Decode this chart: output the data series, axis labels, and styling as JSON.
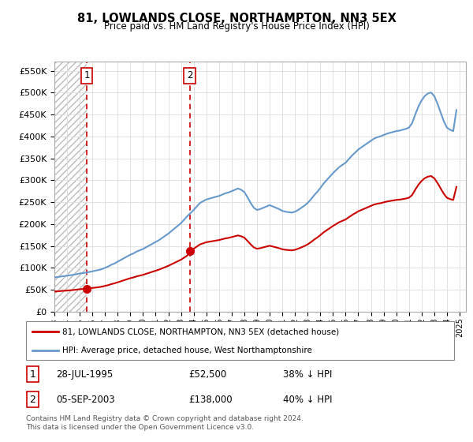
{
  "title": "81, LOWLANDS CLOSE, NORTHAMPTON, NN3 5EX",
  "subtitle": "Price paid vs. HM Land Registry's House Price Index (HPI)",
  "legend_line1": "81, LOWLANDS CLOSE, NORTHAMPTON, NN3 5EX (detached house)",
  "legend_line2": "HPI: Average price, detached house, West Northamptonshire",
  "footer": "Contains HM Land Registry data © Crown copyright and database right 2024.\nThis data is licensed under the Open Government Licence v3.0.",
  "sale1_date": "28-JUL-1995",
  "sale1_price": "£52,500",
  "sale1_hpi": "38% ↓ HPI",
  "sale1_x": 1995.57,
  "sale1_y": 52500,
  "sale2_date": "05-SEP-2003",
  "sale2_price": "£138,000",
  "sale2_hpi": "40% ↓ HPI",
  "sale2_x": 2003.68,
  "sale2_y": 138000,
  "property_color": "#cc0000",
  "hpi_color": "#6699cc",
  "vline_color": "#cc0000",
  "xmin": 1993,
  "xmax": 2025.5,
  "ymin": 0,
  "ymax": 570000,
  "yticks": [
    0,
    50000,
    100000,
    150000,
    200000,
    250000,
    300000,
    350000,
    400000,
    450000,
    500000,
    550000
  ],
  "xticks": [
    1993,
    1994,
    1995,
    1996,
    1997,
    1998,
    1999,
    2000,
    2001,
    2002,
    2003,
    2004,
    2005,
    2006,
    2007,
    2008,
    2009,
    2010,
    2011,
    2012,
    2013,
    2014,
    2015,
    2016,
    2017,
    2018,
    2019,
    2020,
    2021,
    2022,
    2023,
    2024,
    2025
  ],
  "hpi_x": [
    1993.0,
    1993.25,
    1993.5,
    1993.75,
    1994.0,
    1994.25,
    1994.5,
    1994.75,
    1995.0,
    1995.25,
    1995.5,
    1995.75,
    1996.0,
    1996.25,
    1996.5,
    1996.75,
    1997.0,
    1997.25,
    1997.5,
    1997.75,
    1998.0,
    1998.25,
    1998.5,
    1998.75,
    1999.0,
    1999.25,
    1999.5,
    1999.75,
    2000.0,
    2000.25,
    2000.5,
    2000.75,
    2001.0,
    2001.25,
    2001.5,
    2001.75,
    2002.0,
    2002.25,
    2002.5,
    2002.75,
    2003.0,
    2003.25,
    2003.5,
    2003.75,
    2004.0,
    2004.25,
    2004.5,
    2004.75,
    2005.0,
    2005.25,
    2005.5,
    2005.75,
    2006.0,
    2006.25,
    2006.5,
    2006.75,
    2007.0,
    2007.25,
    2007.5,
    2007.75,
    2008.0,
    2008.25,
    2008.5,
    2008.75,
    2009.0,
    2009.25,
    2009.5,
    2009.75,
    2010.0,
    2010.25,
    2010.5,
    2010.75,
    2011.0,
    2011.25,
    2011.5,
    2011.75,
    2012.0,
    2012.25,
    2012.5,
    2012.75,
    2013.0,
    2013.25,
    2013.5,
    2013.75,
    2014.0,
    2014.25,
    2014.5,
    2014.75,
    2015.0,
    2015.25,
    2015.5,
    2015.75,
    2016.0,
    2016.25,
    2016.5,
    2016.75,
    2017.0,
    2017.25,
    2017.5,
    2017.75,
    2018.0,
    2018.25,
    2018.5,
    2018.75,
    2019.0,
    2019.25,
    2019.5,
    2019.75,
    2020.0,
    2020.25,
    2020.5,
    2020.75,
    2021.0,
    2021.25,
    2021.5,
    2021.75,
    2022.0,
    2022.25,
    2022.5,
    2022.75,
    2023.0,
    2023.25,
    2023.5,
    2023.75,
    2024.0,
    2024.25,
    2024.5,
    2024.75
  ],
  "hpi_y": [
    78000,
    79000,
    80000,
    81000,
    82000,
    83000,
    84000,
    85500,
    87000,
    88000,
    89000,
    90500,
    92000,
    93500,
    95000,
    97000,
    100000,
    103000,
    107000,
    110000,
    114000,
    118000,
    122000,
    126000,
    130000,
    133000,
    137000,
    140000,
    143000,
    147000,
    151000,
    155000,
    159000,
    163000,
    168000,
    173000,
    178000,
    184000,
    190000,
    196000,
    202000,
    210000,
    218000,
    225000,
    232000,
    240000,
    248000,
    252000,
    256000,
    258000,
    260000,
    262000,
    264000,
    267000,
    270000,
    272000,
    275000,
    278000,
    281000,
    278000,
    273000,
    261000,
    248000,
    237000,
    232000,
    234000,
    237000,
    240000,
    243000,
    240000,
    237000,
    234000,
    230000,
    228000,
    227000,
    226000,
    228000,
    232000,
    237000,
    242000,
    248000,
    256000,
    265000,
    273000,
    282000,
    292000,
    300000,
    308000,
    316000,
    323000,
    330000,
    335000,
    340000,
    348000,
    356000,
    363000,
    370000,
    375000,
    380000,
    385000,
    390000,
    395000,
    398000,
    400000,
    403000,
    406000,
    408000,
    410000,
    412000,
    413000,
    415000,
    417000,
    420000,
    430000,
    450000,
    468000,
    482000,
    492000,
    498000,
    500000,
    492000,
    475000,
    455000,
    435000,
    420000,
    415000,
    412000,
    460000
  ]
}
